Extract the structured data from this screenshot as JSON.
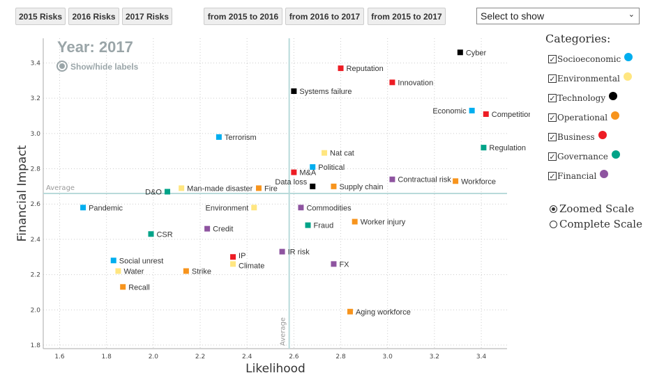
{
  "toolbar": {
    "buttons": [
      "2015 Risks",
      "2016 Risks",
      "2017 Risks",
      "from 2015 to 2016",
      "from 2016 to 2017",
      "from 2015 to 2017"
    ],
    "select_placeholder": "Select to show"
  },
  "legend": {
    "title": "Categories:",
    "categories": [
      {
        "label": "Socioeconomic",
        "color": "#00aeef",
        "checked": true
      },
      {
        "label": "Environmental",
        "color": "#ffe680",
        "checked": true
      },
      {
        "label": "Technology",
        "color": "#000000",
        "checked": true
      },
      {
        "label": "Operational",
        "color": "#f7941d",
        "checked": true
      },
      {
        "label": "Business",
        "color": "#ed1c24",
        "checked": true
      },
      {
        "label": "Governance",
        "color": "#00a388",
        "checked": true
      },
      {
        "label": "Financial",
        "color": "#8e54a0",
        "checked": true
      }
    ],
    "scales": [
      {
        "label": "Zoomed Scale",
        "selected": true
      },
      {
        "label": "Complete Scale",
        "selected": false
      }
    ]
  },
  "chart_data": {
    "type": "scatter",
    "year_label": "Year: 2017",
    "show_hide_labels": "Show/hide labels",
    "xlabel": "Likelihood",
    "ylabel": "Financial Impact",
    "xlim": [
      1.53,
      3.51
    ],
    "ylim": [
      1.78,
      3.54
    ],
    "xticks": [
      "1.6",
      "1.8",
      "2.0",
      "2.2",
      "2.4",
      "2.6",
      "2.8",
      "3.0",
      "3.2",
      "3.4"
    ],
    "yticks": [
      "1.8",
      "2.0",
      "2.2",
      "2.4",
      "2.6",
      "2.8",
      "3.0",
      "3.2",
      "3.4"
    ],
    "grid": true,
    "average": {
      "x": 2.58,
      "y": 2.66,
      "label": "Average"
    },
    "points": [
      {
        "name": "Cyber",
        "x": 3.31,
        "y": 3.46,
        "cat": "Technology"
      },
      {
        "name": "Reputation",
        "x": 2.8,
        "y": 3.37,
        "cat": "Business"
      },
      {
        "name": "Innovation",
        "x": 3.02,
        "y": 3.29,
        "cat": "Business"
      },
      {
        "name": "Systems failure",
        "x": 2.6,
        "y": 3.24,
        "cat": "Technology"
      },
      {
        "name": "Economic",
        "x": 3.36,
        "y": 3.13,
        "cat": "Socioeconomic"
      },
      {
        "name": "Competition",
        "x": 3.42,
        "y": 3.11,
        "cat": "Business"
      },
      {
        "name": "Terrorism",
        "x": 2.28,
        "y": 2.98,
        "cat": "Socioeconomic"
      },
      {
        "name": "Regulation",
        "x": 3.41,
        "y": 2.92,
        "cat": "Governance"
      },
      {
        "name": "Nat cat",
        "x": 2.73,
        "y": 2.89,
        "cat": "Environmental"
      },
      {
        "name": "Political",
        "x": 2.68,
        "y": 2.81,
        "cat": "Socioeconomic"
      },
      {
        "name": "M&A",
        "x": 2.6,
        "y": 2.78,
        "cat": "Business"
      },
      {
        "name": "Contractual risk",
        "x": 3.02,
        "y": 2.74,
        "cat": "Financial"
      },
      {
        "name": "Workforce",
        "x": 3.29,
        "y": 2.73,
        "cat": "Operational"
      },
      {
        "name": "Data loss",
        "x": 2.68,
        "y": 2.7,
        "cat": "Technology"
      },
      {
        "name": "Supply chain",
        "x": 2.77,
        "y": 2.7,
        "cat": "Operational"
      },
      {
        "name": "Man-made disaster",
        "x": 2.12,
        "y": 2.69,
        "cat": "Environmental"
      },
      {
        "name": "Fire",
        "x": 2.45,
        "y": 2.69,
        "cat": "Operational"
      },
      {
        "name": "D&O",
        "x": 2.06,
        "y": 2.67,
        "cat": "Governance"
      },
      {
        "name": "Pandemic",
        "x": 1.7,
        "y": 2.58,
        "cat": "Socioeconomic"
      },
      {
        "name": "Environment",
        "x": 2.43,
        "y": 2.58,
        "cat": "Environmental"
      },
      {
        "name": "Commodities",
        "x": 2.63,
        "y": 2.58,
        "cat": "Financial"
      },
      {
        "name": "Worker injury",
        "x": 2.86,
        "y": 2.5,
        "cat": "Operational"
      },
      {
        "name": "Fraud",
        "x": 2.66,
        "y": 2.48,
        "cat": "Governance"
      },
      {
        "name": "Credit",
        "x": 2.23,
        "y": 2.46,
        "cat": "Financial"
      },
      {
        "name": "CSR",
        "x": 1.99,
        "y": 2.43,
        "cat": "Governance"
      },
      {
        "name": "IR risk",
        "x": 2.55,
        "y": 2.33,
        "cat": "Financial"
      },
      {
        "name": "IP",
        "x": 2.34,
        "y": 2.3,
        "cat": "Business"
      },
      {
        "name": "Social unrest",
        "x": 1.83,
        "y": 2.28,
        "cat": "Socioeconomic"
      },
      {
        "name": "Climate",
        "x": 2.34,
        "y": 2.26,
        "cat": "Environmental"
      },
      {
        "name": "FX",
        "x": 2.77,
        "y": 2.26,
        "cat": "Financial"
      },
      {
        "name": "Water",
        "x": 1.85,
        "y": 2.22,
        "cat": "Environmental"
      },
      {
        "name": "Strike",
        "x": 2.14,
        "y": 2.22,
        "cat": "Operational"
      },
      {
        "name": "Recall",
        "x": 1.87,
        "y": 2.13,
        "cat": "Operational"
      },
      {
        "name": "Aging workforce",
        "x": 2.84,
        "y": 1.99,
        "cat": "Operational"
      }
    ]
  }
}
